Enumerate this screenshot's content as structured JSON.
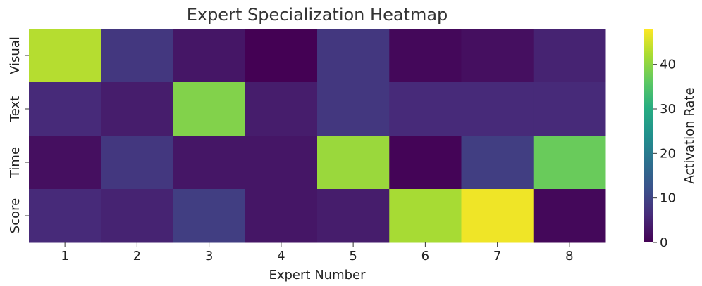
{
  "chart_data": {
    "type": "heatmap",
    "title": "Expert Specialization Heatmap",
    "xlabel": "Expert Number",
    "ylabel": "",
    "x_categories": [
      "1",
      "2",
      "3",
      "4",
      "5",
      "6",
      "7",
      "8"
    ],
    "y_categories": [
      "Visual",
      "Text",
      "Time",
      "Score"
    ],
    "values": [
      [
        43,
        8,
        3,
        0,
        8,
        1,
        2,
        5
      ],
      [
        6,
        4,
        39,
        4,
        8,
        6,
        6,
        6
      ],
      [
        2,
        8,
        3,
        3,
        41,
        0.5,
        9,
        37
      ],
      [
        6,
        5,
        9,
        3,
        4,
        42,
        47,
        1
      ]
    ],
    "colorbar": {
      "label": "Activation Rate",
      "range": [
        0,
        48
      ],
      "ticks": [
        "0",
        "10",
        "20",
        "30",
        "40"
      ],
      "colormap": "viridis"
    },
    "grid": false
  }
}
